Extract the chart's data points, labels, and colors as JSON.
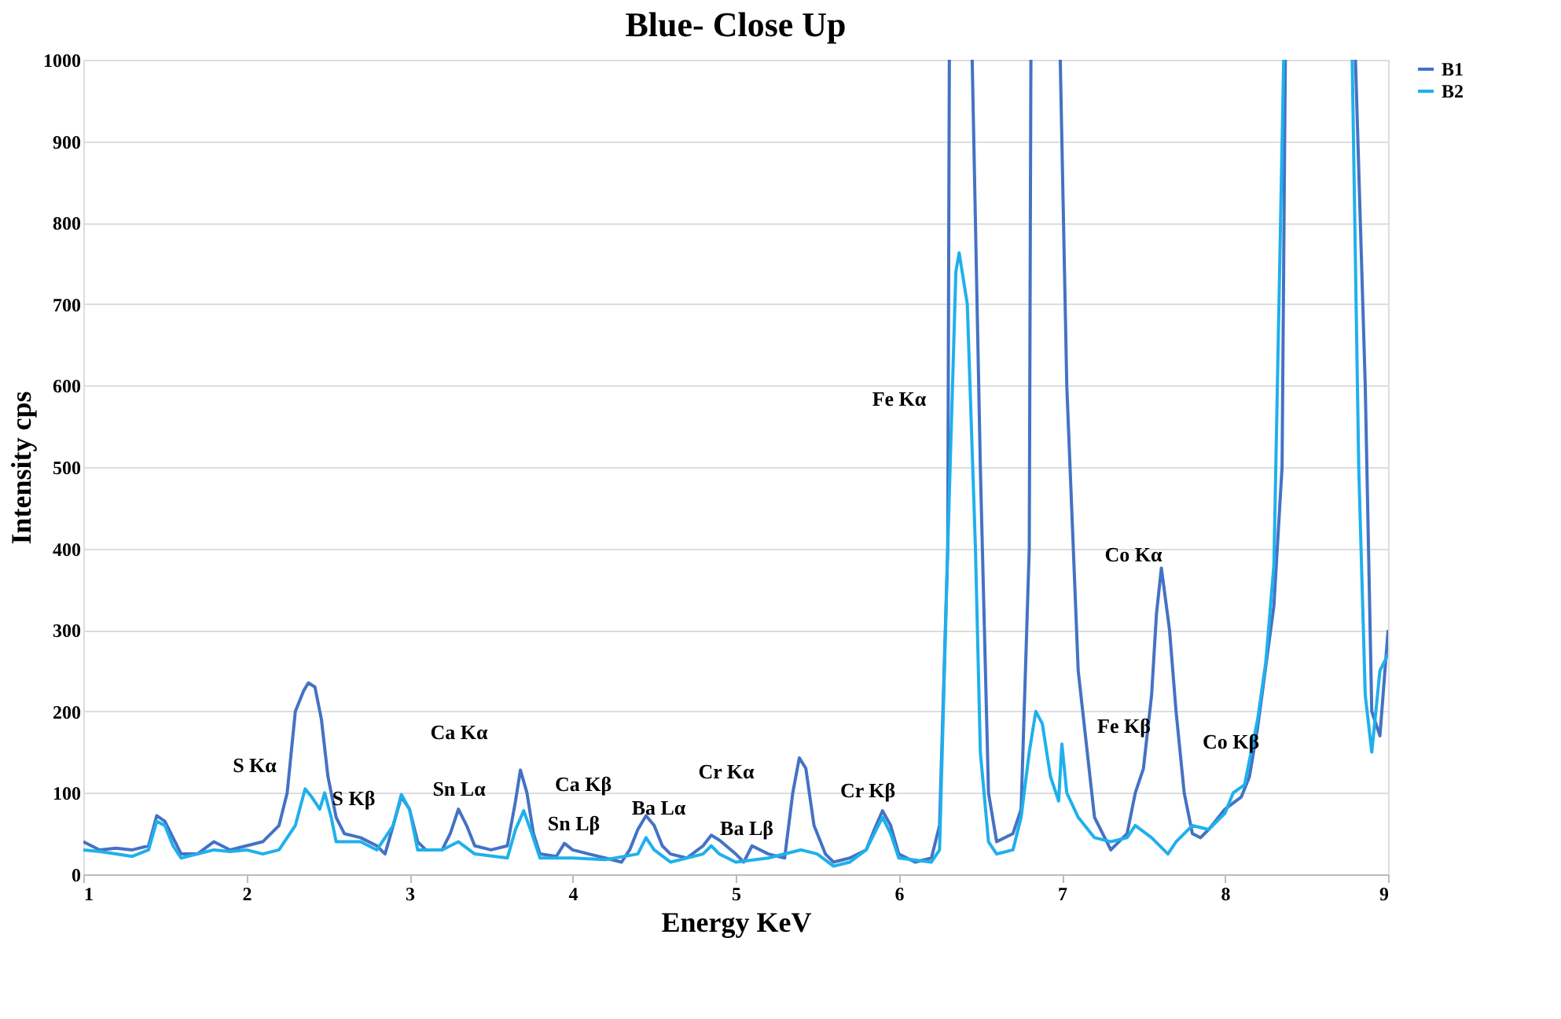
{
  "chart_data": {
    "type": "line",
    "title": "Blue- Close Up",
    "xlabel": "Energy KeV",
    "ylabel": "Intensity cps",
    "xlim": [
      1,
      9
    ],
    "xticks": [
      1,
      2,
      3,
      4,
      5,
      6,
      7,
      8,
      9
    ],
    "ylim": [
      0,
      1000
    ],
    "yticks": [
      0,
      100,
      200,
      300,
      400,
      500,
      600,
      700,
      800,
      900,
      1000
    ],
    "grid": "y",
    "legend": "right",
    "marker": "none",
    "line_style": "solid",
    "series": [
      {
        "name": "B1",
        "color": "#4472c4",
        "x": [
          1.0,
          1.1,
          1.2,
          1.3,
          1.4,
          1.45,
          1.5,
          1.55,
          1.6,
          1.7,
          1.8,
          1.9,
          2.0,
          2.1,
          2.2,
          2.25,
          2.3,
          2.35,
          2.38,
          2.42,
          2.46,
          2.5,
          2.55,
          2.6,
          2.7,
          2.8,
          2.85,
          2.9,
          2.95,
          3.0,
          3.05,
          3.1,
          3.2,
          3.25,
          3.3,
          3.35,
          3.4,
          3.5,
          3.6,
          3.65,
          3.68,
          3.72,
          3.76,
          3.8,
          3.9,
          3.95,
          4.0,
          4.1,
          4.2,
          4.3,
          4.35,
          4.4,
          4.45,
          4.5,
          4.55,
          4.6,
          4.7,
          4.8,
          4.85,
          4.9,
          5.0,
          5.05,
          5.1,
          5.2,
          5.3,
          5.35,
          5.39,
          5.43,
          5.48,
          5.55,
          5.6,
          5.7,
          5.8,
          5.85,
          5.9,
          5.95,
          6.0,
          6.1,
          6.2,
          6.25,
          6.3,
          6.31,
          6.38,
          6.45,
          6.5,
          6.55,
          6.6,
          6.7,
          6.75,
          6.8,
          6.81,
          6.9,
          6.99,
          7.03,
          7.1,
          7.2,
          7.3,
          7.4,
          7.45,
          7.5,
          7.55,
          7.58,
          7.61,
          7.66,
          7.7,
          7.75,
          7.8,
          7.85,
          7.9,
          8.0,
          8.1,
          8.15,
          8.2,
          8.3,
          8.35,
          8.37,
          8.6,
          8.8,
          8.86,
          8.9,
          8.95,
          9.0
        ],
        "values": [
          40,
          30,
          32,
          30,
          35,
          72,
          65,
          45,
          25,
          25,
          40,
          30,
          35,
          40,
          60,
          100,
          200,
          225,
          235,
          230,
          190,
          120,
          70,
          50,
          45,
          35,
          25,
          60,
          95,
          80,
          40,
          30,
          30,
          50,
          80,
          60,
          35,
          30,
          35,
          90,
          128,
          100,
          50,
          25,
          22,
          38,
          30,
          25,
          20,
          15,
          30,
          55,
          72,
          60,
          35,
          25,
          20,
          35,
          48,
          42,
          25,
          15,
          35,
          25,
          20,
          100,
          143,
          130,
          60,
          25,
          15,
          20,
          30,
          55,
          78,
          60,
          25,
          15,
          20,
          60,
          400,
          1000,
          null,
          1000,
          500,
          100,
          40,
          50,
          80,
          400,
          1000,
          null,
          1000,
          600,
          250,
          70,
          30,
          50,
          100,
          130,
          220,
          320,
          376,
          300,
          200,
          100,
          50,
          45,
          55,
          80,
          95,
          120,
          180,
          330,
          500,
          1000,
          null,
          1000,
          600,
          200,
          170,
          300
        ]
      },
      {
        "name": "B2",
        "color": "#1fb0ec",
        "x": [
          1.0,
          1.1,
          1.2,
          1.3,
          1.4,
          1.45,
          1.5,
          1.55,
          1.6,
          1.7,
          1.8,
          1.9,
          2.0,
          2.1,
          2.2,
          2.3,
          2.36,
          2.4,
          2.45,
          2.48,
          2.52,
          2.55,
          2.7,
          2.8,
          2.9,
          2.95,
          3.0,
          3.05,
          3.2,
          3.3,
          3.4,
          3.6,
          3.65,
          3.7,
          3.75,
          3.8,
          4.0,
          4.2,
          4.4,
          4.45,
          4.5,
          4.6,
          4.8,
          4.85,
          4.9,
          5.0,
          5.2,
          5.4,
          5.5,
          5.6,
          5.7,
          5.8,
          5.85,
          5.9,
          5.95,
          6.0,
          6.2,
          6.25,
          6.3,
          6.35,
          6.37,
          6.42,
          6.47,
          6.5,
          6.55,
          6.6,
          6.7,
          6.75,
          6.8,
          6.84,
          6.88,
          6.93,
          6.98,
          7.0,
          7.03,
          7.1,
          7.2,
          7.3,
          7.4,
          7.45,
          7.55,
          7.65,
          7.7,
          7.8,
          7.9,
          8.0,
          8.05,
          8.12,
          8.2,
          8.25,
          8.3,
          8.36,
          8.6,
          8.78,
          8.82,
          8.86,
          8.9,
          8.95,
          9.0
        ],
        "values": [
          30,
          28,
          25,
          22,
          30,
          65,
          60,
          35,
          20,
          25,
          30,
          28,
          30,
          25,
          30,
          60,
          105,
          95,
          80,
          100,
          70,
          40,
          40,
          30,
          60,
          98,
          80,
          30,
          30,
          40,
          25,
          20,
          55,
          78,
          50,
          20,
          20,
          18,
          25,
          45,
          30,
          15,
          25,
          35,
          25,
          15,
          20,
          30,
          25,
          10,
          15,
          30,
          50,
          70,
          50,
          20,
          15,
          30,
          400,
          740,
          763,
          700,
          400,
          150,
          40,
          25,
          30,
          70,
          150,
          200,
          185,
          120,
          90,
          160,
          100,
          70,
          45,
          40,
          45,
          60,
          45,
          25,
          40,
          60,
          55,
          75,
          100,
          110,
          190,
          260,
          380,
          1000,
          null,
          1000,
          500,
          220,
          150,
          250,
          270
        ]
      }
    ],
    "annotations": [
      "S Kα",
      "S Kβ",
      "Ca Kα",
      "Sn Lα",
      "Ca Kβ",
      "Sn Lβ",
      "Ba Lα",
      "Cr Kα",
      "Ba Lβ",
      "Cr Kβ",
      "Fe Kα",
      "Co Kα",
      "Fe Kβ",
      "Co Kβ"
    ]
  }
}
